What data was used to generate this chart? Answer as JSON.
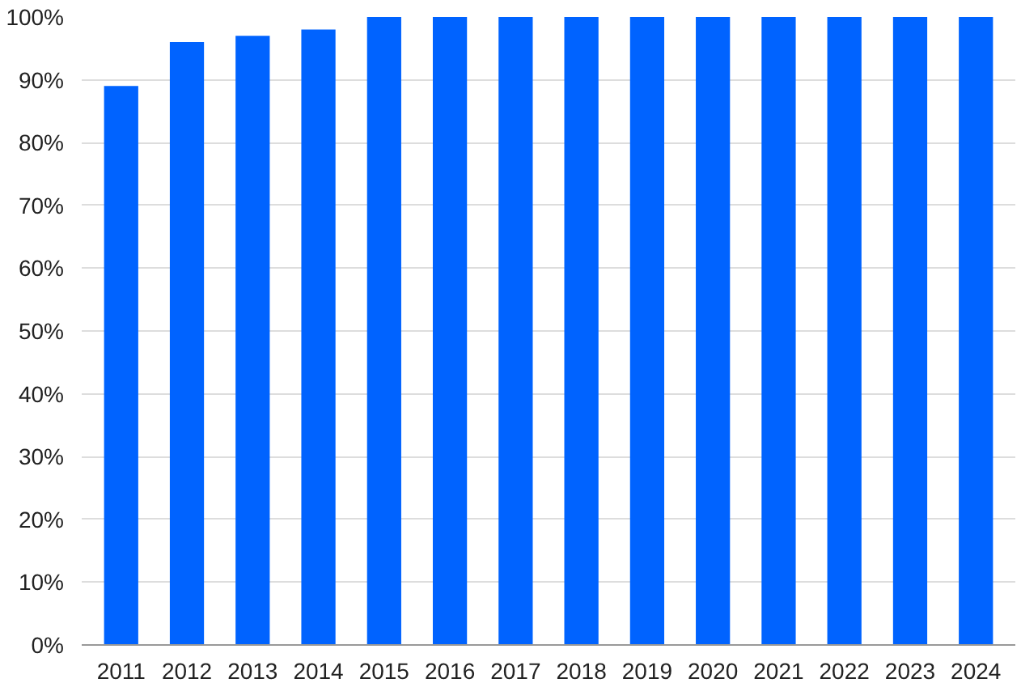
{
  "chart_data": {
    "type": "bar",
    "categories": [
      "2011",
      "2012",
      "2013",
      "2014",
      "2015",
      "2016",
      "2017",
      "2018",
      "2019",
      "2020",
      "2021",
      "2022",
      "2023",
      "2024"
    ],
    "values": [
      89,
      96,
      97,
      98,
      100,
      100,
      100,
      100,
      100,
      100,
      100,
      100,
      100,
      100
    ],
    "color": "#0063ff",
    "ylim": [
      0,
      100
    ],
    "yticks": [
      {
        "value": 0,
        "label": "0%"
      },
      {
        "value": 10,
        "label": "10%"
      },
      {
        "value": 20,
        "label": "20%"
      },
      {
        "value": 30,
        "label": "30%"
      },
      {
        "value": 40,
        "label": "40%"
      },
      {
        "value": 50,
        "label": "50%"
      },
      {
        "value": 60,
        "label": "60%"
      },
      {
        "value": 70,
        "label": "70%"
      },
      {
        "value": 80,
        "label": "80%"
      },
      {
        "value": 90,
        "label": "90%"
      },
      {
        "value": 100,
        "label": "100%"
      }
    ],
    "grid": "y"
  }
}
